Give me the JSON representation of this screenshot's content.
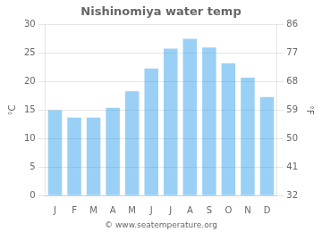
{
  "chart_data": {
    "type": "bar",
    "title": "Nishinomiya water temp",
    "categories": [
      "J",
      "F",
      "M",
      "A",
      "M",
      "J",
      "J",
      "A",
      "S",
      "O",
      "N",
      "D"
    ],
    "values": [
      15.0,
      13.7,
      13.7,
      15.4,
      18.3,
      22.3,
      25.8,
      27.5,
      26.0,
      23.2,
      20.7,
      17.3
    ],
    "ylim": [
      0,
      30
    ],
    "yticks": [
      0,
      5,
      10,
      15,
      20,
      25,
      30
    ],
    "y2lim": [
      32,
      86
    ],
    "y2ticks": [
      32,
      41,
      50,
      59,
      68,
      77,
      86
    ],
    "ylabel": "°C",
    "y2label": "°F",
    "annotations": [
      "© www.seatemperature.org"
    ],
    "grid": true
  }
}
